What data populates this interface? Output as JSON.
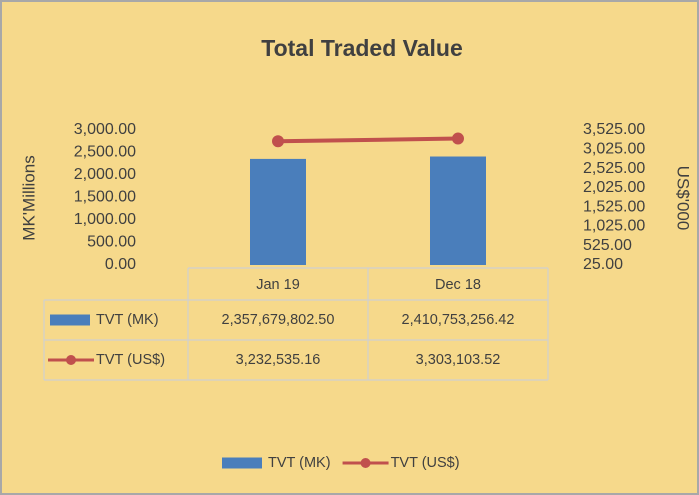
{
  "chart_data": {
    "type": "bar",
    "title": "Total Traded Value",
    "ylabel": "MK'Millions",
    "y2label": "US$'000",
    "categories": [
      "Jan 19",
      "Dec 18"
    ],
    "series": [
      {
        "name": "TVT (MK)",
        "type": "bar",
        "color": "#4a7ebb",
        "values": [
          2357.6798025,
          2410.75325642
        ],
        "value_labels": [
          "2,357,679,802.50",
          "2,410,753,256.42"
        ]
      },
      {
        "name": "TVT (US$)",
        "type": "line",
        "axis": "y2",
        "color": "#c0504d",
        "values": [
          3232.53516,
          3303.10352
        ],
        "value_labels": [
          "3,232,535.16",
          "3,303,103.52"
        ]
      }
    ],
    "ylim": [
      0,
      3000
    ],
    "yticks": [
      {
        "value": 0,
        "label": "0.00"
      },
      {
        "value": 500,
        "label": "500.00"
      },
      {
        "value": 1000,
        "label": "1,000.00"
      },
      {
        "value": 1500,
        "label": "1,500.00"
      },
      {
        "value": 2000,
        "label": "2,000.00"
      },
      {
        "value": 2500,
        "label": "2,500.00"
      },
      {
        "value": 3000,
        "label": "3,000.00"
      }
    ],
    "y2lim": [
      25,
      3525
    ],
    "y2ticks": [
      {
        "value": 25,
        "label": "25.00"
      },
      {
        "value": 525,
        "label": "525.00"
      },
      {
        "value": 1025,
        "label": "1,025.00"
      },
      {
        "value": 1525,
        "label": "1,525.00"
      },
      {
        "value": 2025,
        "label": "2,025.00"
      },
      {
        "value": 2525,
        "label": "2,525.00"
      },
      {
        "value": 3025,
        "label": "3,025.00"
      },
      {
        "value": 3525,
        "label": "3,525.00"
      }
    ],
    "legend": "bottom"
  }
}
